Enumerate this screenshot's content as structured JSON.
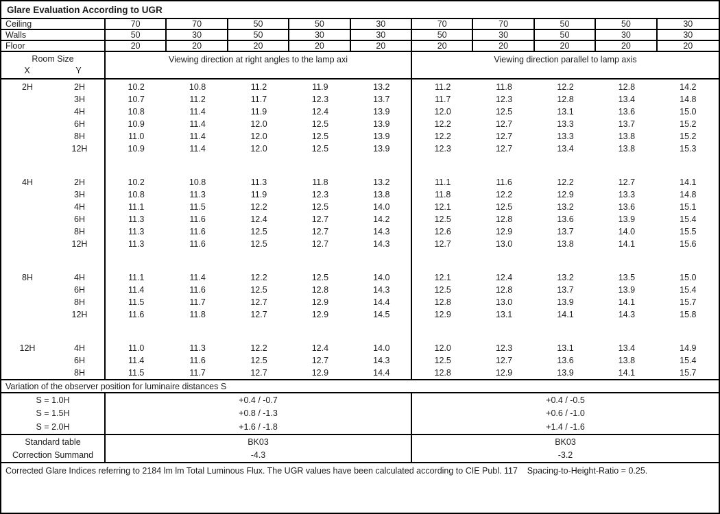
{
  "title": "Glare Evaluation According to UGR",
  "colors": {
    "border": "#000000",
    "text": "#1c1c1c",
    "background": "#ffffff"
  },
  "surface_rows": [
    {
      "label": "Ceiling",
      "values": [
        "70",
        "70",
        "50",
        "50",
        "30",
        "70",
        "70",
        "50",
        "50",
        "30"
      ]
    },
    {
      "label": "Walls",
      "values": [
        "50",
        "30",
        "50",
        "30",
        "30",
        "50",
        "30",
        "50",
        "30",
        "30"
      ]
    },
    {
      "label": "Floor",
      "values": [
        "20",
        "20",
        "20",
        "20",
        "20",
        "20",
        "20",
        "20",
        "20",
        "20"
      ]
    }
  ],
  "header": {
    "room_size": "Room Size",
    "x": "X",
    "y": "Y",
    "left_group": "Viewing direction at right angles to the lamp axi",
    "right_group": "Viewing direction parallel to lamp axis"
  },
  "blocks": [
    {
      "x": "2H",
      "rows": [
        {
          "y": "2H",
          "left": [
            "10.2",
            "10.8",
            "11.2",
            "11.9",
            "13.2"
          ],
          "right": [
            "11.2",
            "11.8",
            "12.2",
            "12.8",
            "14.2"
          ]
        },
        {
          "y": "3H",
          "left": [
            "10.7",
            "11.2",
            "11.7",
            "12.3",
            "13.7"
          ],
          "right": [
            "11.7",
            "12.3",
            "12.8",
            "13.4",
            "14.8"
          ]
        },
        {
          "y": "4H",
          "left": [
            "10.8",
            "11.4",
            "11.9",
            "12.4",
            "13.9"
          ],
          "right": [
            "12.0",
            "12.5",
            "13.1",
            "13.6",
            "15.0"
          ]
        },
        {
          "y": "6H",
          "left": [
            "10.9",
            "11.4",
            "12.0",
            "12.5",
            "13.9"
          ],
          "right": [
            "12.2",
            "12.7",
            "13.3",
            "13.7",
            "15.2"
          ]
        },
        {
          "y": "8H",
          "left": [
            "11.0",
            "11.4",
            "12.0",
            "12.5",
            "13.9"
          ],
          "right": [
            "12.2",
            "12.7",
            "13.3",
            "13.8",
            "15.2"
          ]
        },
        {
          "y": "12H",
          "left": [
            "10.9",
            "11.4",
            "12.0",
            "12.5",
            "13.9"
          ],
          "right": [
            "12.3",
            "12.7",
            "13.4",
            "13.8",
            "15.3"
          ]
        }
      ]
    },
    {
      "x": "4H",
      "rows": [
        {
          "y": "2H",
          "left": [
            "10.2",
            "10.8",
            "11.3",
            "11.8",
            "13.2"
          ],
          "right": [
            "11.1",
            "11.6",
            "12.2",
            "12.7",
            "14.1"
          ]
        },
        {
          "y": "3H",
          "left": [
            "10.8",
            "11.3",
            "11.9",
            "12.3",
            "13.8"
          ],
          "right": [
            "11.8",
            "12.2",
            "12.9",
            "13.3",
            "14.8"
          ]
        },
        {
          "y": "4H",
          "left": [
            "11.1",
            "11.5",
            "12.2",
            "12.5",
            "14.0"
          ],
          "right": [
            "12.1",
            "12.5",
            "13.2",
            "13.6",
            "15.1"
          ]
        },
        {
          "y": "6H",
          "left": [
            "11.3",
            "11.6",
            "12.4",
            "12.7",
            "14.2"
          ],
          "right": [
            "12.5",
            "12.8",
            "13.6",
            "13.9",
            "15.4"
          ]
        },
        {
          "y": "8H",
          "left": [
            "11.3",
            "11.6",
            "12.5",
            "12.7",
            "14.3"
          ],
          "right": [
            "12.6",
            "12.9",
            "13.7",
            "14.0",
            "15.5"
          ]
        },
        {
          "y": "12H",
          "left": [
            "11.3",
            "11.6",
            "12.5",
            "12.7",
            "14.3"
          ],
          "right": [
            "12.7",
            "13.0",
            "13.8",
            "14.1",
            "15.6"
          ]
        }
      ]
    },
    {
      "x": "8H",
      "rows": [
        {
          "y": "4H",
          "left": [
            "11.1",
            "11.4",
            "12.2",
            "12.5",
            "14.0"
          ],
          "right": [
            "12.1",
            "12.4",
            "13.2",
            "13.5",
            "15.0"
          ]
        },
        {
          "y": "6H",
          "left": [
            "11.4",
            "11.6",
            "12.5",
            "12.8",
            "14.3"
          ],
          "right": [
            "12.5",
            "12.8",
            "13.7",
            "13.9",
            "15.4"
          ]
        },
        {
          "y": "8H",
          "left": [
            "11.5",
            "11.7",
            "12.7",
            "12.9",
            "14.4"
          ],
          "right": [
            "12.8",
            "13.0",
            "13.9",
            "14.1",
            "15.7"
          ]
        },
        {
          "y": "12H",
          "left": [
            "11.6",
            "11.8",
            "12.7",
            "12.9",
            "14.5"
          ],
          "right": [
            "12.9",
            "13.1",
            "14.1",
            "14.3",
            "15.8"
          ]
        }
      ]
    },
    {
      "x": "12H",
      "rows": [
        {
          "y": "4H",
          "left": [
            "11.0",
            "11.3",
            "12.2",
            "12.4",
            "14.0"
          ],
          "right": [
            "12.0",
            "12.3",
            "13.1",
            "13.4",
            "14.9"
          ]
        },
        {
          "y": "6H",
          "left": [
            "11.4",
            "11.6",
            "12.5",
            "12.7",
            "14.3"
          ],
          "right": [
            "12.5",
            "12.7",
            "13.6",
            "13.8",
            "15.4"
          ]
        },
        {
          "y": "8H",
          "left": [
            "11.5",
            "11.7",
            "12.7",
            "12.9",
            "14.4"
          ],
          "right": [
            "12.8",
            "12.9",
            "13.9",
            "14.1",
            "15.7"
          ]
        }
      ]
    }
  ],
  "variation": {
    "header": "Variation of the observer position for luminaire distances S",
    "rows": [
      {
        "label": "S = 1.0H",
        "left": "+0.4 / -0.7",
        "right": "+0.4 / -0.5"
      },
      {
        "label": "S = 1.5H",
        "left": "+0.8 / -1.3",
        "right": "+0.6 / -1.0"
      },
      {
        "label": "S = 2.0H",
        "left": "+1.6 / -1.8",
        "right": "+1.4 / -1.6"
      }
    ]
  },
  "summary": {
    "rows": [
      {
        "label": "Standard table",
        "left": "BK03",
        "right": "BK03"
      },
      {
        "label": "Correction Summand",
        "left": "-4.3",
        "right": "-3.2"
      }
    ]
  },
  "footer": "Corrected Glare Indices referring to 2184 lm lm Total Luminous Flux. The UGR values have been calculated according to CIE Publ. 117    Spacing-to-Height-Ratio = 0.25."
}
